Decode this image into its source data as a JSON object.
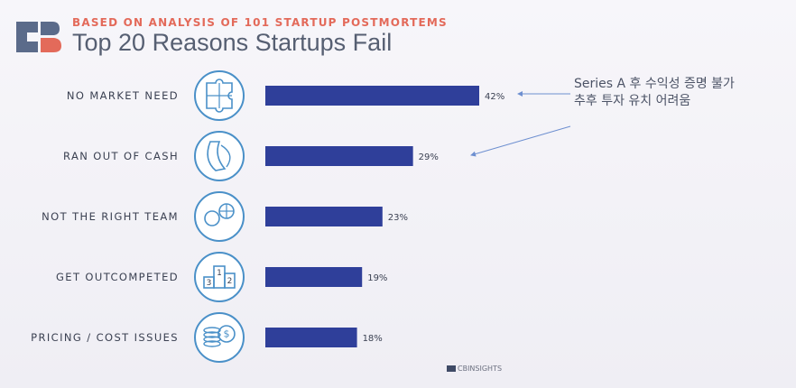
{
  "header": {
    "subtitle": "BASED ON ANALYSIS OF 101 STARTUP POSTMORTEMS",
    "title": "Top 20 Reasons Startups Fail"
  },
  "chart_data": {
    "type": "bar",
    "orientation": "horizontal",
    "categories": [
      "NO MARKET NEED",
      "RAN OUT OF CASH",
      "NOT THE RIGHT TEAM",
      "GET OUTCOMPETED",
      "PRICING / COST ISSUES"
    ],
    "values": [
      42,
      29,
      23,
      19,
      18
    ],
    "value_labels": [
      "42%",
      "29%",
      "23%",
      "19%",
      "18%"
    ],
    "icons": [
      "puzzle-icon",
      "wallet-icon",
      "team-icon",
      "podium-icon",
      "coins-icon"
    ],
    "value_max": 42,
    "bar_color": "#2f3f9a",
    "grid": false
  },
  "annotation": {
    "lines": [
      "Series A 후 수익성 증명 불가",
      "추후 투자 유치 어려움"
    ],
    "color": "#4c5366"
  },
  "colors": {
    "accent": "#e36a5a",
    "bar": "#2f3f9a",
    "icon": "#4a90c8"
  },
  "footer": {
    "brand": "CBINSIGHTS"
  }
}
